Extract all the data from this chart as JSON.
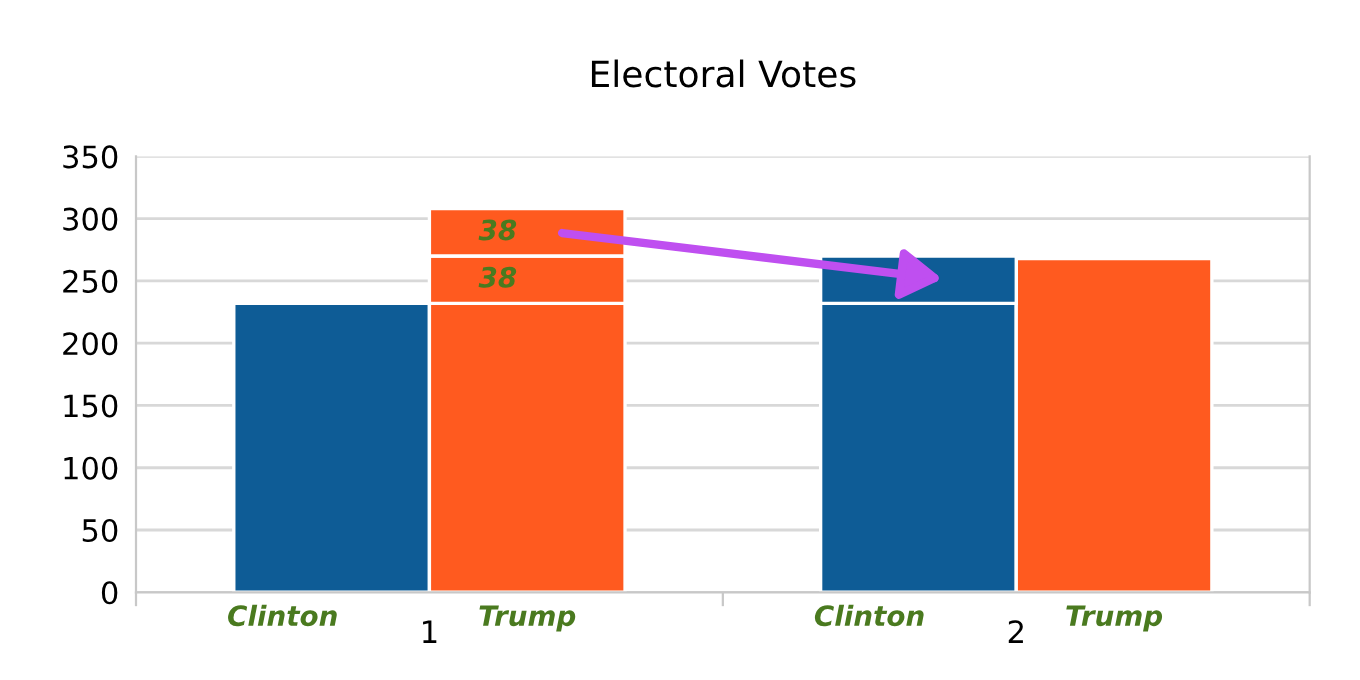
{
  "chart_data": {
    "type": "bar",
    "title": "Electoral Votes",
    "stacked": true,
    "categories": [
      "Clinton",
      "Trump",
      "Clinton",
      "Trump"
    ],
    "annotations": [
      "1",
      "2"
    ],
    "series": [
      {
        "values": [
          232,
          232,
          232,
          268
        ],
        "colors": [
          "#0e5c96",
          "#ff5a1f",
          "#0e5c96",
          "#ff5a1f"
        ]
      },
      {
        "values": [
          null,
          38,
          38,
          null
        ],
        "colors": [
          null,
          "#ff5a1f",
          "#0e5c96",
          null
        ],
        "value_labels": [
          null,
          "38",
          null,
          null
        ]
      },
      {
        "values": [
          null,
          38,
          null,
          null
        ],
        "colors": [
          null,
          "#ff5a1f",
          null,
          null
        ],
        "value_labels": [
          null,
          "38",
          null,
          null
        ]
      }
    ],
    "ylim": [
      0,
      350
    ],
    "yticks": [
      0,
      50,
      100,
      150,
      200,
      250,
      300,
      350
    ],
    "grid": "y",
    "legend": false
  }
}
